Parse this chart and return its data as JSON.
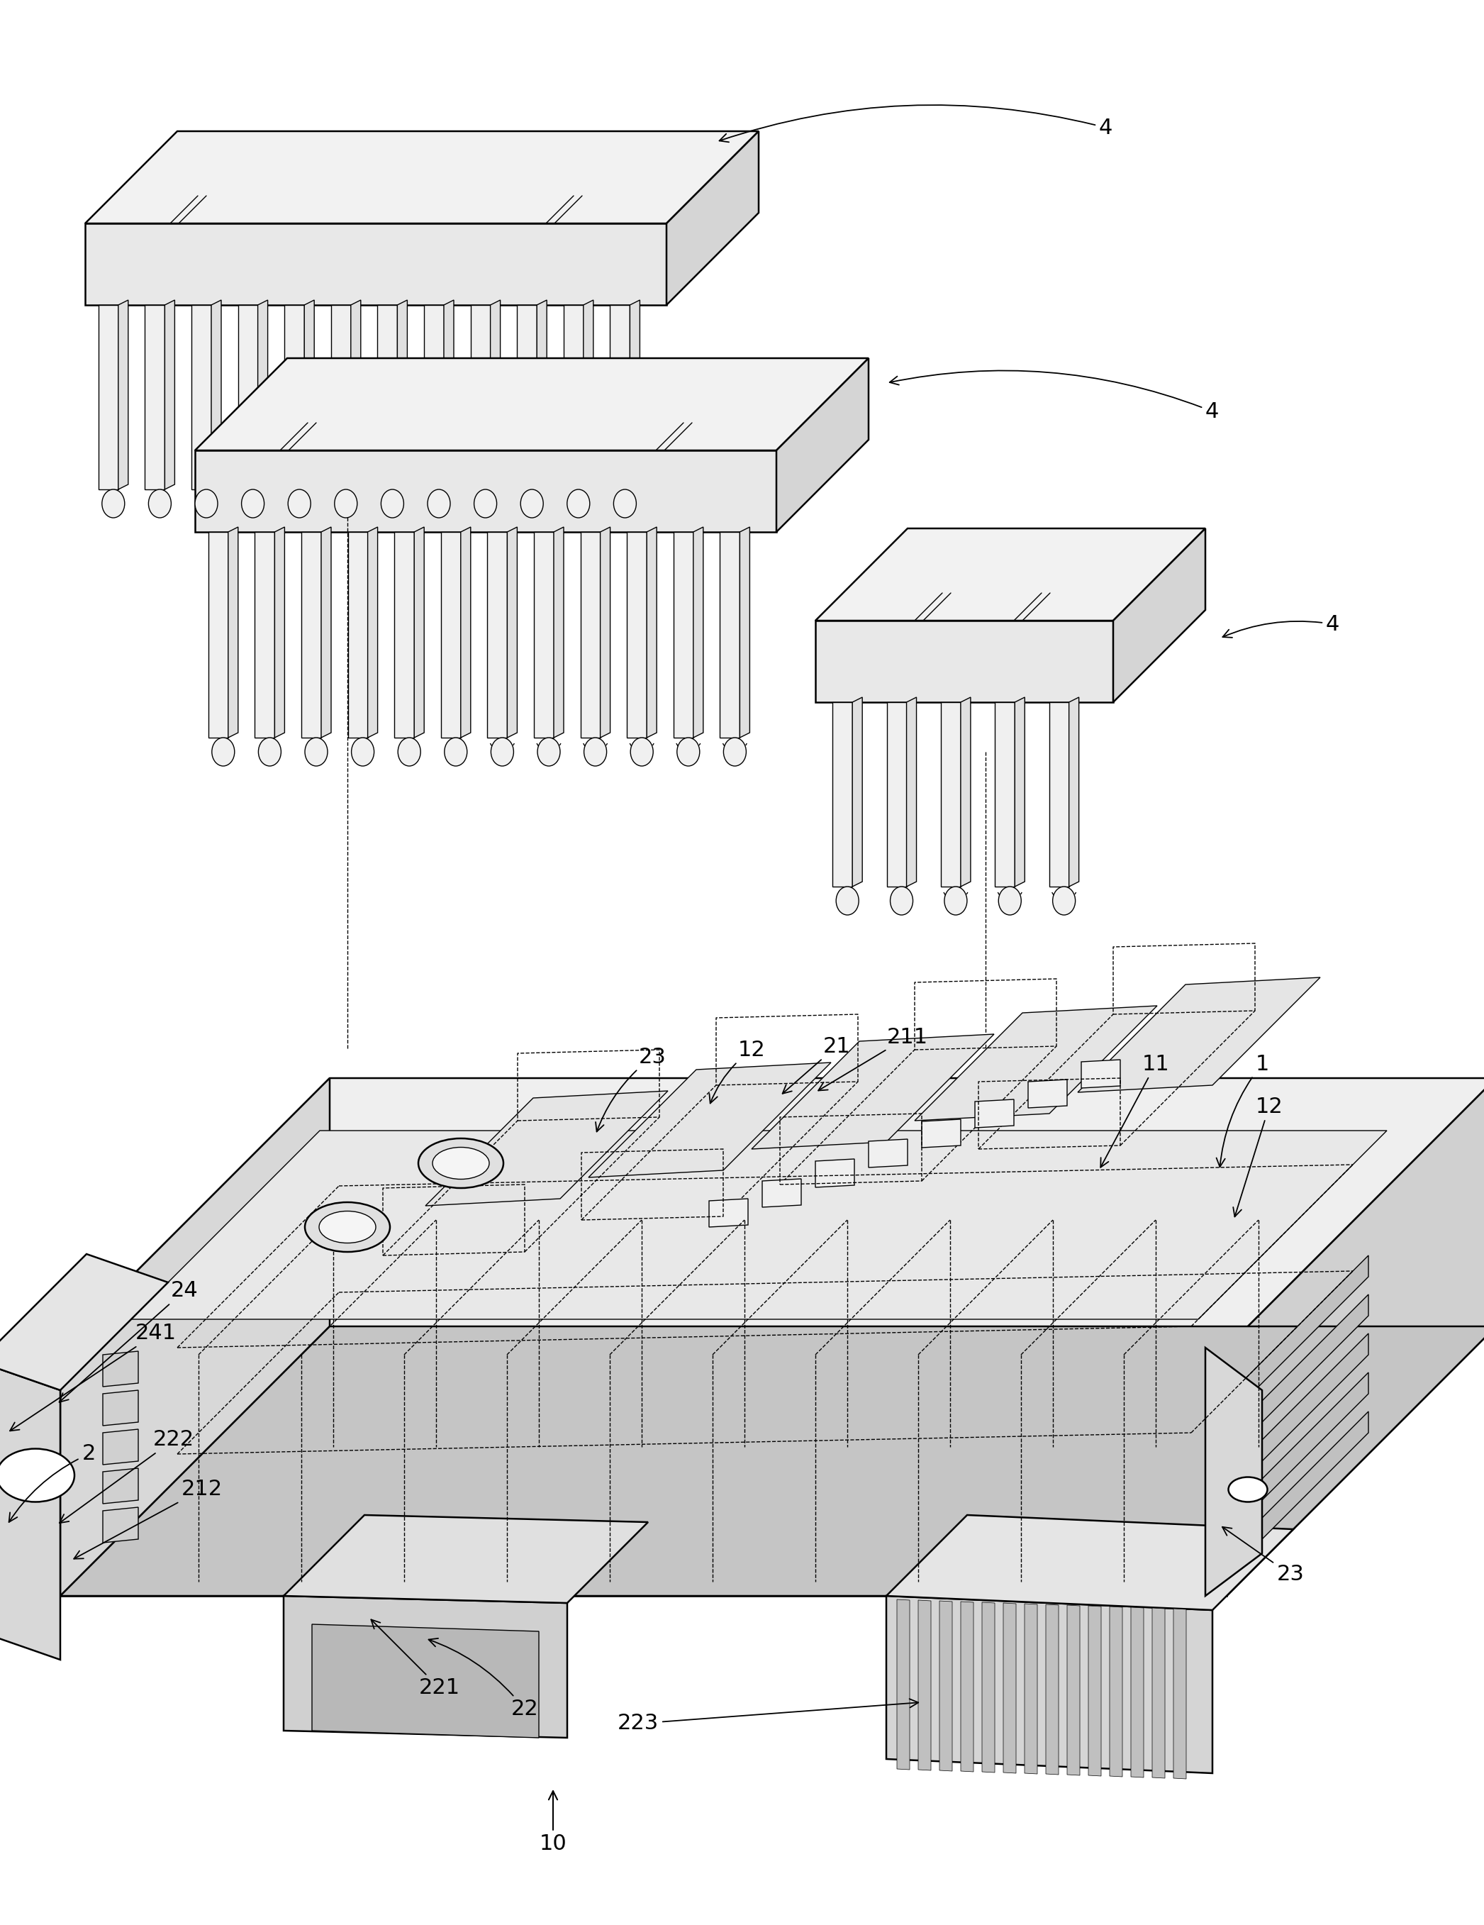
{
  "bg_color": "#ffffff",
  "lc": "#000000",
  "lw": 1.8,
  "tlw": 1.0,
  "fig_w": 20.93,
  "fig_h": 27.14,
  "font_size": 22,
  "annotation_font_size": 22
}
